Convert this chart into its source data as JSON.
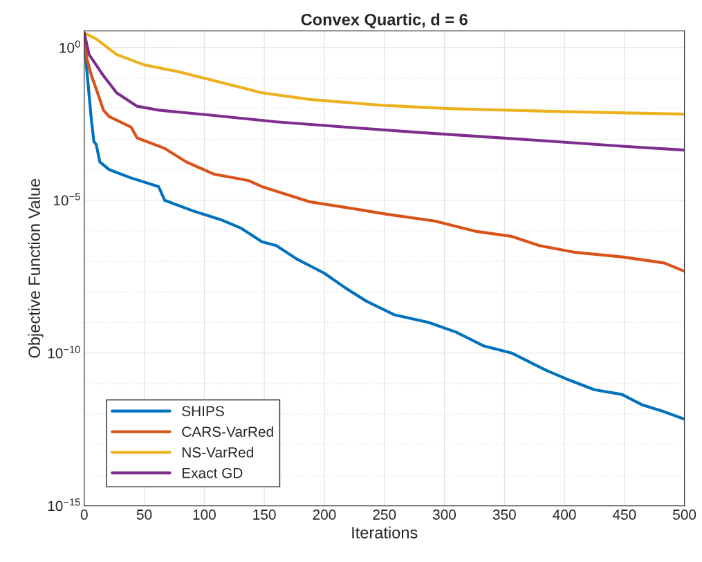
{
  "chart_data": {
    "type": "line",
    "title": "Convex Quartic, d = 6",
    "xlabel": "Iterations",
    "ylabel": "Objective Function Value",
    "log": "y",
    "xlim": [
      0,
      500
    ],
    "xticks": [
      0,
      50,
      100,
      150,
      200,
      250,
      300,
      350,
      400,
      450,
      500
    ],
    "ylim": [
      1e-15,
      3.5
    ],
    "yticks": [
      {
        "value": 1e-15,
        "label": "10$^{−15}$"
      },
      {
        "value": 1e-14,
        "label": null
      },
      {
        "value": 1e-13,
        "label": null
      },
      {
        "value": 1e-12,
        "label": null
      },
      {
        "value": 1e-11,
        "label": null
      },
      {
        "value": 1e-10,
        "label": "10$^{−10}$"
      },
      {
        "value": 1e-09,
        "label": null
      },
      {
        "value": 1e-08,
        "label": null
      },
      {
        "value": 1e-07,
        "label": null
      },
      {
        "value": 1e-06,
        "label": null
      },
      {
        "value": 1e-05,
        "label": "10$^{−5}$"
      },
      {
        "value": 0.0001,
        "label": null
      },
      {
        "value": 0.001,
        "label": null
      },
      {
        "value": 0.01,
        "label": null
      },
      {
        "value": 0.1,
        "label": null
      },
      {
        "value": 1,
        "label": "10$^{0}$"
      }
    ],
    "grid": true,
    "legend": "bottom left",
    "line_style": "solid",
    "marker": "none",
    "series": [
      {
        "name": "SHIPS",
        "color": "#0072bd",
        "x": [
          0,
          2,
          6,
          8,
          10,
          13,
          21,
          39,
          62,
          67,
          90,
          114,
          131,
          148,
          160,
          177,
          200,
          217,
          235,
          258,
          287,
          310,
          333,
          356,
          385,
          402,
          425,
          448,
          465,
          483,
          500
        ],
        "values": [
          3,
          0.21,
          0.0041,
          0.00085,
          0.00066,
          0.00018,
          0.0001,
          5.4e-05,
          2.8e-05,
          1e-05,
          4.6e-06,
          2.3e-06,
          1.2e-06,
          4.4e-07,
          3.3e-07,
          1.2e-07,
          4.1e-08,
          1.4e-08,
          5e-09,
          1.8e-09,
          1e-09,
          4.8e-10,
          1.7e-10,
          1e-10,
          2.7e-11,
          1.4e-11,
          6.3e-12,
          4.4e-12,
          2e-12,
          1.2e-12,
          6.9e-13
        ]
      },
      {
        "name": "CARS-VarRed",
        "color": "#d95319",
        "x": [
          0,
          2,
          6,
          10,
          16,
          21,
          39,
          44,
          67,
          85,
          108,
          137,
          148,
          188,
          217,
          252,
          292,
          327,
          356,
          379,
          408,
          448,
          483,
          500
        ],
        "values": [
          3,
          0.46,
          0.12,
          0.044,
          0.0089,
          0.0054,
          0.0025,
          0.0011,
          0.0005,
          0.00018,
          7.2e-05,
          4.4e-05,
          2.8e-05,
          8.9e-06,
          5.9e-06,
          3.5e-06,
          2.1e-06,
          9.5e-07,
          6.6e-07,
          3.3e-07,
          2e-07,
          1.4e-07,
          8.9e-08,
          4.8e-08
        ]
      },
      {
        "name": "NS-VarRed",
        "color": "#edb120",
        "x": [
          0,
          10,
          27,
          50,
          79,
          114,
          148,
          188,
          246,
          304,
          390,
          500
        ],
        "values": [
          3,
          1.9,
          0.59,
          0.27,
          0.16,
          0.072,
          0.033,
          0.02,
          0.013,
          0.01,
          0.0081,
          0.0066
        ]
      },
      {
        "name": "Exact GD",
        "color": "#7e2f8e",
        "x": [
          0,
          4,
          16,
          27,
          44,
          62,
          102,
          160,
          217,
          275,
          333,
          390,
          448,
          500
        ],
        "values": [
          3,
          0.59,
          0.12,
          0.033,
          0.012,
          0.0089,
          0.0063,
          0.0037,
          0.0025,
          0.0017,
          0.0012,
          0.00085,
          0.00059,
          0.00044
        ]
      }
    ]
  }
}
